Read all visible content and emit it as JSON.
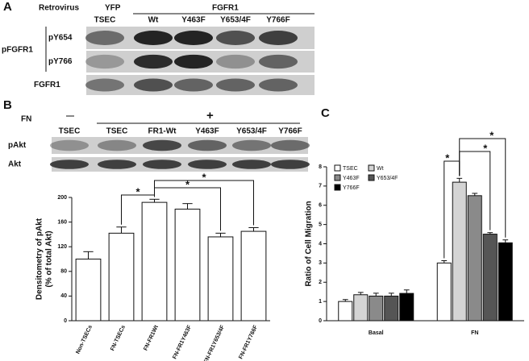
{
  "panels": [
    "A",
    "B",
    "C"
  ],
  "panel_a": {
    "header": "Retrovirus",
    "groups": [
      "YFP",
      "FGFR1"
    ],
    "lanes": [
      "TSEC",
      "Wt",
      "Y463F",
      "Y653/4F",
      "Y766F"
    ],
    "row_group": "pFGFR1",
    "rows": [
      "pY654",
      "pY766",
      "FGFR1"
    ]
  },
  "panel_b_blot": {
    "condition": "FN",
    "minus": "—",
    "plus": "+",
    "lanes": [
      "TSEC",
      "TSEC",
      "FR1-Wt",
      "Y463F",
      "Y653/4F",
      "Y766F"
    ],
    "rows": [
      "pAkt",
      "Akt"
    ]
  },
  "chart_data": [
    {
      "type": "bar",
      "y_label": [
        "Densitometry of pAkt",
        "(% of total Akt)"
      ],
      "categories": [
        "Non-TSECs",
        "FN-TSECs",
        "FN-FR1Wt",
        "FN-FR1Y463F",
        "FN-FR1Y653/4F",
        "FN-FR1Y766F"
      ],
      "values": [
        100,
        142,
        192,
        181,
        136,
        145
      ],
      "errors": [
        12,
        10,
        5,
        9,
        6,
        6
      ],
      "color": "#ffffff",
      "ylim": [
        0,
        200
      ],
      "yticks": [
        0,
        40,
        80,
        120,
        160,
        200
      ],
      "annotations": [
        "*",
        "*",
        "*"
      ]
    },
    {
      "type": "grouped_bar",
      "y_label": "Ratio of Cell Migration",
      "categories": [
        "Basal",
        "FN"
      ],
      "series": [
        {
          "name": "TSEC",
          "color": "#ffffff",
          "values": [
            1.0,
            3.0
          ],
          "errors": [
            0.1,
            0.12
          ]
        },
        {
          "name": "Wt",
          "color": "#d4d4d4",
          "values": [
            1.35,
            7.2
          ],
          "errors": [
            0.12,
            0.2
          ]
        },
        {
          "name": "Y463F",
          "color": "#8a8a8a",
          "values": [
            1.28,
            6.5
          ],
          "errors": [
            0.15,
            0.12
          ]
        },
        {
          "name": "Y653/4F",
          "color": "#555555",
          "values": [
            1.28,
            4.5
          ],
          "errors": [
            0.15,
            0.08
          ]
        },
        {
          "name": "Y766F",
          "color": "#000000",
          "values": [
            1.42,
            4.05
          ],
          "errors": [
            0.18,
            0.15
          ]
        }
      ],
      "ylim": [
        0,
        8
      ],
      "yticks": [
        0,
        1,
        2,
        3,
        4,
        5,
        6,
        7,
        8
      ],
      "legend": "upper left",
      "annotations": [
        "*",
        "*",
        "*"
      ]
    }
  ]
}
